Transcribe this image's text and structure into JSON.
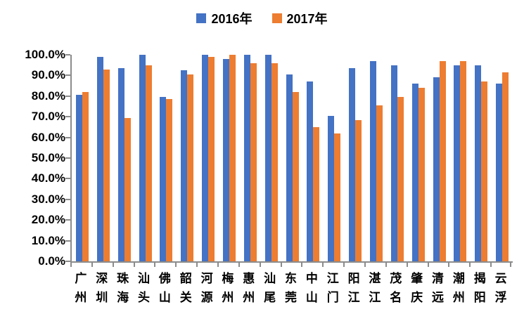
{
  "legend": {
    "items": [
      {
        "label": "2016年",
        "color": "#4472C4"
      },
      {
        "label": "2017年",
        "color": "#ED7D31"
      }
    ]
  },
  "chart_data": {
    "type": "bar",
    "title": "",
    "categories": [
      "广州",
      "深圳",
      "珠海",
      "汕头",
      "佛山",
      "韶关",
      "河源",
      "梅州",
      "惠州",
      "汕尾",
      "东莞",
      "中山",
      "江门",
      "阳江",
      "湛江",
      "茂名",
      "肇庆",
      "清远",
      "潮州",
      "揭阳",
      "云浮"
    ],
    "series": [
      {
        "name": "2016年",
        "color": "#4472C4",
        "values": [
          80.5,
          99.0,
          93.5,
          100.0,
          79.5,
          92.5,
          100.0,
          98.0,
          100.0,
          100.0,
          90.5,
          87.0,
          70.5,
          93.5,
          97.0,
          95.0,
          86.0,
          89.0,
          95.0,
          95.0,
          86.0
        ]
      },
      {
        "name": "2017年",
        "color": "#ED7D31",
        "values": [
          82.0,
          93.0,
          69.5,
          95.0,
          78.5,
          90.5,
          99.0,
          100.0,
          96.0,
          96.0,
          82.0,
          65.0,
          62.0,
          68.5,
          75.5,
          79.5,
          84.0,
          97.0,
          97.0,
          87.0,
          91.5
        ]
      }
    ],
    "ylim": [
      0,
      100
    ],
    "ytick_step": 10,
    "ytick_labels": [
      "0.0%",
      "10.0%",
      "20.0%",
      "30.0%",
      "40.0%",
      "50.0%",
      "60.0%",
      "70.0%",
      "80.0%",
      "90.0%",
      "100.0%"
    ],
    "grid": false,
    "legend_position": "top-center",
    "axis_color": "#8c8c8c",
    "text_color": "#000000"
  }
}
